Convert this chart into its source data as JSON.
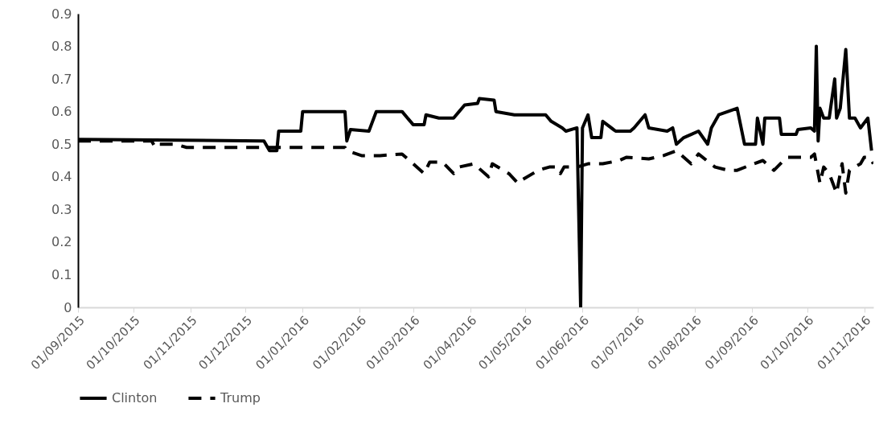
{
  "chart_data": {
    "type": "line",
    "legend": "bottom",
    "grid": false,
    "xlim": [
      "2015-09-01",
      "2016-11-06"
    ],
    "xticks": [
      {
        "value": "2015-09-01",
        "label": "01/09/2015"
      },
      {
        "value": "2015-10-01",
        "label": "01/10/2015"
      },
      {
        "value": "2015-11-01",
        "label": "01/11/2015"
      },
      {
        "value": "2015-12-01",
        "label": "01/12/2015"
      },
      {
        "value": "2016-01-01",
        "label": "01/01/2016"
      },
      {
        "value": "2016-02-01",
        "label": "01/02/2016"
      },
      {
        "value": "2016-03-01",
        "label": "01/03/2016"
      },
      {
        "value": "2016-04-01",
        "label": "01/04/2016"
      },
      {
        "value": "2016-05-01",
        "label": "01/05/2016"
      },
      {
        "value": "2016-06-01",
        "label": "01/06/2016"
      },
      {
        "value": "2016-07-01",
        "label": "01/07/2016"
      },
      {
        "value": "2016-08-01",
        "label": "01/08/2016"
      },
      {
        "value": "2016-09-01",
        "label": "01/09/2016"
      },
      {
        "value": "2016-10-01",
        "label": "01/10/2016"
      },
      {
        "value": "2016-11-01",
        "label": "01/11/2016"
      }
    ],
    "ylim": [
      0,
      0.9
    ],
    "yticks": [
      0,
      0.1,
      0.2,
      0.3,
      0.4,
      0.5,
      0.6,
      0.7,
      0.8,
      0.9
    ],
    "series": [
      {
        "name": "Clinton",
        "color": "#000000",
        "line_style": "solid",
        "x": [
          "2015-09-01",
          "2015-12-11",
          "2015-12-14",
          "2015-12-18",
          "2015-12-19",
          "2015-12-31",
          "2016-01-01",
          "2016-01-24",
          "2016-01-25",
          "2016-01-27",
          "2016-02-06",
          "2016-02-10",
          "2016-02-24",
          "2016-03-01",
          "2016-03-07",
          "2016-03-08",
          "2016-03-15",
          "2016-03-23",
          "2016-03-26",
          "2016-03-29",
          "2016-04-05",
          "2016-04-06",
          "2016-04-14",
          "2016-04-15",
          "2016-04-25",
          "2016-05-12",
          "2016-05-15",
          "2016-05-21",
          "2016-05-23",
          "2016-05-29",
          "2016-05-31",
          "2016-06-01",
          "2016-06-04",
          "2016-06-06",
          "2016-06-11",
          "2016-06-12",
          "2016-06-19",
          "2016-06-27",
          "2016-06-29",
          "2016-07-05",
          "2016-07-07",
          "2016-07-17",
          "2016-07-20",
          "2016-07-22",
          "2016-07-26",
          "2016-07-30",
          "2016-08-03",
          "2016-08-08",
          "2016-08-10",
          "2016-08-14",
          "2016-08-19",
          "2016-08-24",
          "2016-08-28",
          "2016-09-03",
          "2016-09-04",
          "2016-09-07",
          "2016-09-08",
          "2016-09-16",
          "2016-09-17",
          "2016-09-25",
          "2016-09-26",
          "2016-10-03",
          "2016-10-05",
          "2016-10-06",
          "2016-10-07",
          "2016-10-08",
          "2016-10-10",
          "2016-10-13",
          "2016-10-16",
          "2016-10-17",
          "2016-10-19",
          "2016-10-22",
          "2016-10-24",
          "2016-10-27",
          "2016-10-30",
          "2016-11-03",
          "2016-11-05"
        ],
        "values": [
          0.515,
          0.51,
          0.48,
          0.48,
          0.54,
          0.54,
          0.6,
          0.6,
          0.51,
          0.545,
          0.54,
          0.6,
          0.6,
          0.56,
          0.56,
          0.59,
          0.58,
          0.58,
          0.6,
          0.62,
          0.625,
          0.64,
          0.635,
          0.6,
          0.59,
          0.59,
          0.57,
          0.55,
          0.54,
          0.55,
          0,
          0.55,
          0.59,
          0.52,
          0.52,
          0.57,
          0.54,
          0.54,
          0.55,
          0.59,
          0.55,
          0.54,
          0.55,
          0.5,
          0.52,
          0.53,
          0.54,
          0.5,
          0.55,
          0.59,
          0.6,
          0.61,
          0.5,
          0.5,
          0.58,
          0.5,
          0.58,
          0.58,
          0.53,
          0.53,
          0.545,
          0.55,
          0.54,
          0.8,
          0.51,
          0.61,
          0.58,
          0.58,
          0.7,
          0.58,
          0.61,
          0.79,
          0.58,
          0.58,
          0.55,
          0.58,
          0.48
        ]
      },
      {
        "name": "Trump",
        "color": "#000000",
        "line_style": "dashed",
        "x": [
          "2015-09-01",
          "2015-10-11",
          "2015-10-13",
          "2015-10-15",
          "2015-10-24",
          "2015-10-30",
          "2016-01-24",
          "2016-01-25",
          "2016-02-02",
          "2016-02-12",
          "2016-02-24",
          "2016-02-28",
          "2016-03-07",
          "2016-03-10",
          "2016-03-17",
          "2016-03-23",
          "2016-03-26",
          "2016-04-03",
          "2016-04-11",
          "2016-04-13",
          "2016-04-22",
          "2016-04-27",
          "2016-04-29",
          "2016-05-08",
          "2016-05-14",
          "2016-05-18",
          "2016-05-20",
          "2016-05-22",
          "2016-05-29",
          "2016-06-04",
          "2016-06-12",
          "2016-06-21",
          "2016-06-25",
          "2016-07-07",
          "2016-07-15",
          "2016-07-22",
          "2016-07-30",
          "2016-08-03",
          "2016-08-12",
          "2016-08-19",
          "2016-08-24",
          "2016-09-02",
          "2016-09-07",
          "2016-09-13",
          "2016-09-20",
          "2016-10-03",
          "2016-10-05",
          "2016-10-08",
          "2016-10-10",
          "2016-10-13",
          "2016-10-17",
          "2016-10-20",
          "2016-10-22",
          "2016-10-24",
          "2016-10-30",
          "2016-11-01",
          "2016-11-04",
          "2016-11-06"
        ],
        "values": [
          0.51,
          0.51,
          0.49,
          0.5,
          0.5,
          0.49,
          0.49,
          0.48,
          0.465,
          0.465,
          0.47,
          0.45,
          0.41,
          0.445,
          0.445,
          0.41,
          0.43,
          0.44,
          0.4,
          0.44,
          0.41,
          0.38,
          0.39,
          0.42,
          0.43,
          0.43,
          0.41,
          0.43,
          0.43,
          0.44,
          0.44,
          0.45,
          0.46,
          0.455,
          0.465,
          0.48,
          0.44,
          0.47,
          0.43,
          0.42,
          0.42,
          0.44,
          0.45,
          0.42,
          0.46,
          0.46,
          0.47,
          0.38,
          0.43,
          0.41,
          0.35,
          0.44,
          0.35,
          0.42,
          0.44,
          0.46,
          0.46,
          0.44
        ]
      }
    ]
  }
}
